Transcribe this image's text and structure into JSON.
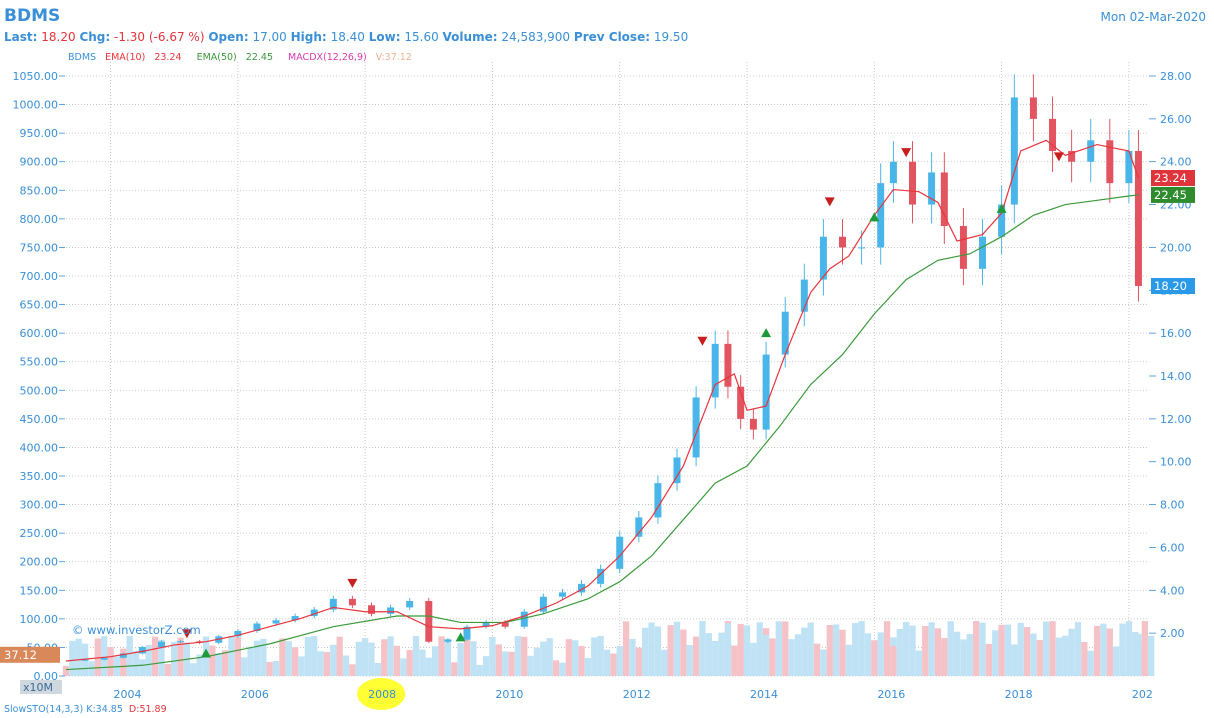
{
  "header": {
    "symbol": "BDMS",
    "date": "Mon 02-Mar-2020",
    "last_label": "Last:",
    "last": "18.20",
    "chg_label": "Chg:",
    "chg": "-1.30 (-6.67 %)",
    "open_label": "Open:",
    "open": "17.00",
    "high_label": "High:",
    "high": "18.40",
    "low_label": "Low:",
    "low": "15.60",
    "volume_label": "Volume:",
    "volume": "24,583,900",
    "prev_label": "Prev Close:",
    "prev": "19.50"
  },
  "legend": {
    "symbol": "BDMS",
    "ema10": "EMA(10)",
    "ema10_val": "23.24",
    "ema50": "EMA(50)",
    "ema50_val": "22.45",
    "macd": "MACDX(12,26,9)",
    "vol": "V:37.12"
  },
  "watermark": "© www.investorZ.com",
  "volume_scale": "x10M",
  "volume_marker": "37.12",
  "bottom": {
    "slowsto": "SlowSTO(14,3,3)",
    "k": "K:34.85",
    "d": "D:51.89"
  },
  "colors": {
    "up": "#4ab5e8",
    "down": "#e25560",
    "ema10": "#e8343c",
    "ema50": "#3a9a3a",
    "accent": "#3a8fd6",
    "highlight": "#ffff33"
  },
  "chart_data": {
    "type": "candlestick",
    "left_axis": {
      "ticks": [
        "0.00",
        "50.00",
        "100.00",
        "150.00",
        "200.00",
        "250.00",
        "300.00",
        "350.00",
        "400.00",
        "450.00",
        "500.00",
        "550.00",
        "600.00",
        "650.00",
        "700.00",
        "750.00",
        "800.00",
        "850.00",
        "900.00",
        "950.00",
        "1000.00",
        "1050.00"
      ],
      "range": [
        0,
        1050
      ]
    },
    "right_axis": {
      "ticks": [
        "2.00",
        "4.00",
        "6.00",
        "8.00",
        "10.00",
        "12.00",
        "14.00",
        "16.00",
        "18.00",
        "20.00",
        "22.00",
        "24.00",
        "26.00",
        "28.00"
      ],
      "range": [
        0,
        28
      ]
    },
    "x_ticks": [
      "2004",
      "2006",
      "2008",
      "2010",
      "2012",
      "2014",
      "2016",
      "2018",
      "202"
    ],
    "x_range": [
      2003.3,
      2020.3
    ],
    "price_badges": {
      "ema10": "23.24",
      "ema50": "22.45",
      "last": "18.20"
    },
    "grid": true,
    "close": [
      [
        2003.3,
        0.72
      ],
      [
        2003.6,
        0.76
      ],
      [
        2003.9,
        0.85
      ],
      [
        2004.2,
        1.05
      ],
      [
        2004.5,
        1.35
      ],
      [
        2004.8,
        1.6
      ],
      [
        2005.1,
        1.62
      ],
      [
        2005.4,
        1.55
      ],
      [
        2005.7,
        1.85
      ],
      [
        2006.0,
        2.1
      ],
      [
        2006.3,
        2.45
      ],
      [
        2006.6,
        2.6
      ],
      [
        2006.9,
        2.8
      ],
      [
        2007.2,
        3.1
      ],
      [
        2007.5,
        3.6
      ],
      [
        2007.8,
        3.3
      ],
      [
        2008.1,
        2.9
      ],
      [
        2008.4,
        3.2
      ],
      [
        2008.7,
        3.5
      ],
      [
        2009.0,
        1.6
      ],
      [
        2009.3,
        1.7
      ],
      [
        2009.6,
        2.3
      ],
      [
        2009.9,
        2.5
      ],
      [
        2010.2,
        2.3
      ],
      [
        2010.5,
        3.0
      ],
      [
        2010.8,
        3.7
      ],
      [
        2011.1,
        3.9
      ],
      [
        2011.4,
        4.3
      ],
      [
        2011.7,
        5.0
      ],
      [
        2012.0,
        6.5
      ],
      [
        2012.3,
        7.4
      ],
      [
        2012.6,
        9.0
      ],
      [
        2012.9,
        10.2
      ],
      [
        2013.2,
        13.0
      ],
      [
        2013.5,
        15.5
      ],
      [
        2013.7,
        13.5
      ],
      [
        2013.9,
        12.0
      ],
      [
        2014.1,
        11.5
      ],
      [
        2014.3,
        15.0
      ],
      [
        2014.6,
        17.0
      ],
      [
        2014.9,
        18.5
      ],
      [
        2015.2,
        20.5
      ],
      [
        2015.5,
        20.0
      ],
      [
        2015.8,
        20.0
      ],
      [
        2016.1,
        23.0
      ],
      [
        2016.3,
        24.0
      ],
      [
        2016.6,
        22.0
      ],
      [
        2016.9,
        23.5
      ],
      [
        2017.1,
        21.0
      ],
      [
        2017.4,
        19.0
      ],
      [
        2017.7,
        20.5
      ],
      [
        2018.0,
        22.0
      ],
      [
        2018.2,
        27.0
      ],
      [
        2018.5,
        26.0
      ],
      [
        2018.8,
        24.5
      ],
      [
        2019.1,
        24.0
      ],
      [
        2019.4,
        25.0
      ],
      [
        2019.7,
        23.0
      ],
      [
        2020.0,
        24.5
      ],
      [
        2020.15,
        18.2
      ]
    ],
    "ema10": [
      [
        2003.3,
        0.7
      ],
      [
        2004.0,
        0.9
      ],
      [
        2004.5,
        1.15
      ],
      [
        2005.0,
        1.45
      ],
      [
        2005.5,
        1.6
      ],
      [
        2006.0,
        1.9
      ],
      [
        2006.5,
        2.3
      ],
      [
        2007.0,
        2.7
      ],
      [
        2007.5,
        3.2
      ],
      [
        2008.0,
        3.0
      ],
      [
        2008.5,
        3.0
      ],
      [
        2009.0,
        2.3
      ],
      [
        2009.5,
        2.2
      ],
      [
        2010.0,
        2.35
      ],
      [
        2010.5,
        2.8
      ],
      [
        2011.0,
        3.4
      ],
      [
        2011.5,
        4.2
      ],
      [
        2012.0,
        5.6
      ],
      [
        2012.5,
        7.4
      ],
      [
        2013.0,
        9.8
      ],
      [
        2013.5,
        13.6
      ],
      [
        2013.8,
        14.1
      ],
      [
        2014.0,
        12.4
      ],
      [
        2014.3,
        12.6
      ],
      [
        2014.6,
        15.0
      ],
      [
        2015.0,
        17.9
      ],
      [
        2015.3,
        19.0
      ],
      [
        2015.6,
        19.6
      ],
      [
        2016.0,
        21.5
      ],
      [
        2016.3,
        22.7
      ],
      [
        2016.7,
        22.6
      ],
      [
        2017.0,
        22.1
      ],
      [
        2017.3,
        20.3
      ],
      [
        2017.7,
        20.6
      ],
      [
        2018.0,
        21.6
      ],
      [
        2018.3,
        24.5
      ],
      [
        2018.7,
        25.0
      ],
      [
        2019.0,
        24.3
      ],
      [
        2019.5,
        24.8
      ],
      [
        2020.0,
        24.5
      ],
      [
        2020.15,
        23.24
      ]
    ],
    "ema50": [
      [
        2003.3,
        0.3
      ],
      [
        2004.5,
        0.5
      ],
      [
        2005.5,
        0.9
      ],
      [
        2006.5,
        1.5
      ],
      [
        2007.5,
        2.3
      ],
      [
        2008.5,
        2.8
      ],
      [
        2009.0,
        2.8
      ],
      [
        2009.5,
        2.5
      ],
      [
        2010.2,
        2.5
      ],
      [
        2010.8,
        2.9
      ],
      [
        2011.5,
        3.6
      ],
      [
        2012.0,
        4.4
      ],
      [
        2012.5,
        5.6
      ],
      [
        2013.0,
        7.3
      ],
      [
        2013.5,
        9.0
      ],
      [
        2014.0,
        9.8
      ],
      [
        2014.5,
        11.6
      ],
      [
        2015.0,
        13.6
      ],
      [
        2015.5,
        15.0
      ],
      [
        2016.0,
        16.9
      ],
      [
        2016.5,
        18.5
      ],
      [
        2017.0,
        19.4
      ],
      [
        2017.5,
        19.7
      ],
      [
        2018.0,
        20.5
      ],
      [
        2018.5,
        21.5
      ],
      [
        2019.0,
        22.0
      ],
      [
        2019.5,
        22.2
      ],
      [
        2020.0,
        22.4
      ],
      [
        2020.15,
        22.45
      ]
    ],
    "signals_down": [
      [
        2005.2,
        1.95
      ],
      [
        2007.8,
        4.3
      ],
      [
        2013.3,
        15.6
      ],
      [
        2015.3,
        22.1
      ],
      [
        2016.5,
        24.4
      ],
      [
        2018.9,
        24.2
      ]
    ],
    "signals_up": [
      [
        2005.5,
        1.05
      ],
      [
        2009.5,
        1.8
      ],
      [
        2014.3,
        16.0
      ],
      [
        2016.0,
        21.4
      ],
      [
        2018.0,
        21.8
      ]
    ]
  }
}
